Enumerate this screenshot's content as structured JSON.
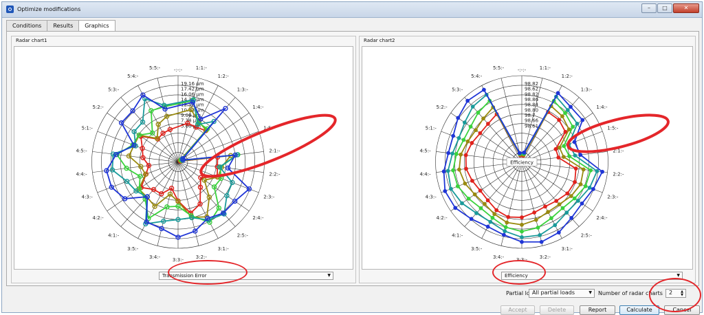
{
  "window": {
    "title": "Optimize modifications"
  },
  "tabs": [
    {
      "label": "Conditions"
    },
    {
      "label": "Results"
    },
    {
      "label": "Graphics"
    }
  ],
  "chart1": {
    "group_label": "Radar chart1",
    "top_label": "-:-:-",
    "categories": [
      "1:1:-",
      "1:2:-",
      "1:3:-",
      "1:4:-",
      "1:5:-",
      "2:1:-",
      "2:2:-",
      "2:3:-",
      "2:4:-",
      "2:5:-",
      "3:1:-",
      "3:2:-",
      "3:3:-",
      "3:4:-",
      "3:5:-",
      "4:1:-",
      "4:2:-",
      "4:3:-",
      "4:4:-",
      "4:5:-",
      "5:1:-",
      "5:2:-",
      "5:3:-",
      "5:4:-",
      "5:5:-"
    ],
    "radial_ticks": [
      "19.16 µm",
      "17.42 µm",
      "16.06 µm",
      "14.31 µm",
      "12.57 µm",
      "10.83 µm",
      "9.09 µm",
      "7.34 µm",
      "5.60 µm"
    ],
    "selector": "Transmission Error",
    "colors": [
      "#e0231d",
      "#998a10",
      "#3ad23c",
      "#1a9a9a",
      "#1f35d6"
    ]
  },
  "chart2": {
    "group_label": "Radar chart2",
    "top_label": "-:-:-",
    "categories": [
      "1:1:-",
      "1:2:-",
      "1:3:-",
      "1:4:-",
      "1:5:-",
      "2:1:-",
      "2:2:-",
      "2:3:-",
      "2:4:-",
      "2:5:-",
      "3:1:-",
      "3:2:-",
      "3:3:-",
      "3:4:-",
      "3:5:-",
      "4:1:-",
      "4:2:-",
      "4:3:-",
      "4:4:-",
      "4:5:-",
      "5:1:-",
      "5:2:-",
      "5:3:-",
      "5:4:-",
      "5:5:-"
    ],
    "radial_ticks": [
      "98.82",
      "98.62",
      "98.82",
      "98.86",
      "98.84",
      "98.80",
      "98.7",
      "98.66",
      "98.61"
    ],
    "center_label": "Efficiency",
    "selector": "Efficiency",
    "colors": [
      "#e0231d",
      "#998a10",
      "#3ad23c",
      "#1a9a9a",
      "#1f35d6"
    ]
  },
  "footer": {
    "partial_load_label": "Partial load",
    "partial_load_value": "All partial loads",
    "num_charts_label": "Number of radar charts",
    "num_charts_value": "2",
    "buttons": {
      "accept": "Accept",
      "delete": "Delete",
      "report": "Report",
      "calculate": "Calculate",
      "cancel": "Cancel"
    }
  }
}
